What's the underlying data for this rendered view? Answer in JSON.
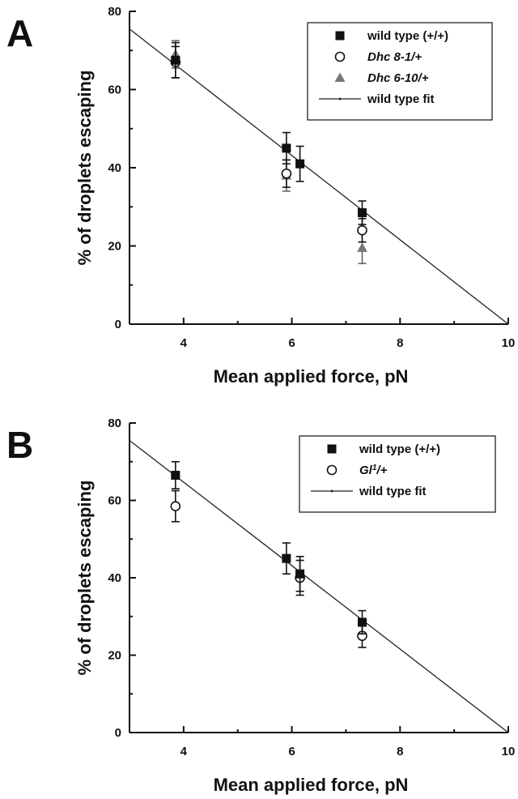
{
  "chart_data": [
    {
      "panel": "A",
      "type": "scatter",
      "xlabel": "Mean applied force, pN",
      "ylabel": "% of droplets escaping",
      "xlim": [
        3,
        10
      ],
      "ylim": [
        0,
        80
      ],
      "xticks": [
        4,
        6,
        8,
        10
      ],
      "yticks": [
        0,
        20,
        40,
        60,
        80
      ],
      "legend_position": "top-right",
      "series": [
        {
          "name": "wild type (+/+)",
          "marker": "filled-square",
          "color": "#111111",
          "points": [
            {
              "x": 3.85,
              "y": 67.5,
              "err": 4.5
            },
            {
              "x": 5.9,
              "y": 45,
              "err": 4
            },
            {
              "x": 6.15,
              "y": 41,
              "err": 4.5
            },
            {
              "x": 7.3,
              "y": 28.5,
              "err": 3
            }
          ]
        },
        {
          "name": "Dhc 8-1/+",
          "marker": "open-circle",
          "color": "#111111",
          "points": [
            {
              "x": 3.85,
              "y": 67,
              "err": 4
            },
            {
              "x": 5.9,
              "y": 38.5,
              "err": 3.5
            },
            {
              "x": 7.3,
              "y": 24,
              "err": 3
            }
          ]
        },
        {
          "name": "Dhc 6-10/+",
          "marker": "filled-triangle",
          "color": "#777777",
          "points": [
            {
              "x": 3.85,
              "y": 69,
              "err": 3.5
            },
            {
              "x": 5.9,
              "y": 38,
              "err": 4
            },
            {
              "x": 7.3,
              "y": 19.5,
              "err": 4
            }
          ]
        }
      ],
      "fit": {
        "name": "wild type fit",
        "x0": 3,
        "y0": 75.5,
        "x1": 10,
        "y1": 0
      }
    },
    {
      "panel": "B",
      "type": "scatter",
      "xlabel": "Mean applied force, pN",
      "ylabel": "% of droplets escaping",
      "xlim": [
        3,
        10
      ],
      "ylim": [
        0,
        80
      ],
      "xticks": [
        4,
        6,
        8,
        10
      ],
      "yticks": [
        0,
        20,
        40,
        60,
        80
      ],
      "legend_position": "top-right",
      "series": [
        {
          "name": "wild type (+/+)",
          "marker": "filled-square",
          "color": "#111111",
          "points": [
            {
              "x": 3.85,
              "y": 66.5,
              "err": 3.5
            },
            {
              "x": 5.9,
              "y": 45,
              "err": 4
            },
            {
              "x": 6.15,
              "y": 41,
              "err": 4.5
            },
            {
              "x": 7.3,
              "y": 28.5,
              "err": 3
            }
          ]
        },
        {
          "name": "Gl1/+",
          "name_base": "Gl",
          "name_sup": "1",
          "name_tail": "/+",
          "marker": "open-circle",
          "color": "#111111",
          "points": [
            {
              "x": 3.85,
              "y": 58.5,
              "err": 4
            },
            {
              "x": 6.15,
              "y": 40,
              "err": 4.5
            },
            {
              "x": 7.3,
              "y": 25,
              "err": 3
            }
          ]
        }
      ],
      "fit": {
        "name": "wild type fit",
        "x0": 3,
        "y0": 75.5,
        "x1": 10,
        "y1": 0
      }
    }
  ],
  "panels": [
    "A",
    "B"
  ]
}
